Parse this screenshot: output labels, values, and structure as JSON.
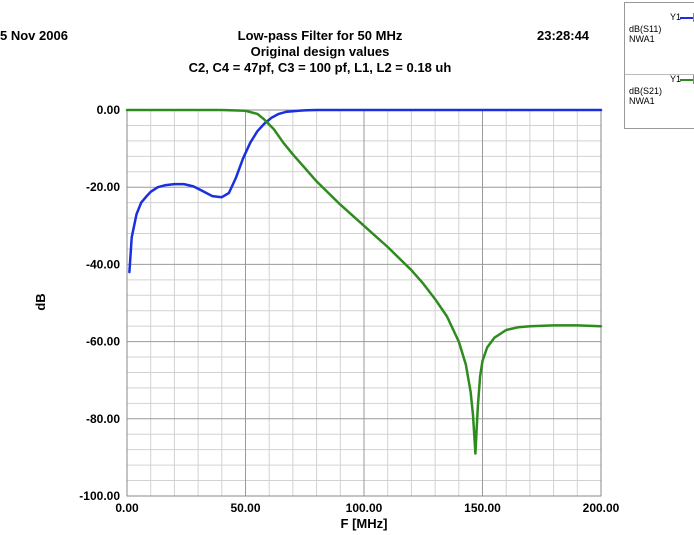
{
  "header": {
    "date": "5 Nov 2006",
    "time": "23:28:44",
    "title_lines": [
      "Low-pass Filter for 50 MHz",
      "Original design values",
      "C2, C4 = 47pf, C3 = 100 pf, L1, L2 = 0.18 uh"
    ]
  },
  "legend": {
    "entries": [
      {
        "axis": "Y1",
        "name": "dB(S11)",
        "source": "NWA1",
        "color": "#1a2fe0"
      },
      {
        "axis": "Y1",
        "name": "dB(S21)",
        "source": "NWA1",
        "color": "#2e8b1e"
      }
    ]
  },
  "chart_data": {
    "type": "line",
    "title": "Low-pass Filter for 50 MHz",
    "xlabel": "F [MHz]",
    "ylabel": "dB",
    "xlim": [
      0,
      200
    ],
    "ylim": [
      -100,
      0
    ],
    "x_ticks": [
      "0.00",
      "50.00",
      "100.00",
      "150.00",
      "200.00"
    ],
    "y_ticks": [
      "0.00",
      "-20.00",
      "-40.00",
      "-60.00",
      "-80.00",
      "-100.00"
    ],
    "grid": true,
    "legend_position": "top-right, outside plot",
    "series": [
      {
        "name": "dB(S11)",
        "color": "#1a2fe0",
        "x": [
          1,
          2,
          4,
          6,
          8,
          10,
          13,
          16,
          20,
          24,
          28,
          32,
          36,
          40,
          43,
          46,
          49,
          52,
          55,
          58,
          61,
          64,
          67,
          70,
          73,
          76,
          80,
          90,
          100,
          150,
          200
        ],
        "y": [
          -42,
          -33,
          -27,
          -24,
          -22.5,
          -21.2,
          -20,
          -19.5,
          -19.2,
          -19.2,
          -19.8,
          -21,
          -22.3,
          -22.6,
          -21.5,
          -17.5,
          -12.5,
          -8.5,
          -5.5,
          -3.5,
          -2,
          -1,
          -0.5,
          -0.3,
          -0.15,
          -0.05,
          0,
          0,
          0,
          0,
          0
        ]
      },
      {
        "name": "dB(S21)",
        "color": "#2e8b1e",
        "x": [
          0,
          20,
          40,
          50,
          55,
          58,
          62,
          66,
          70,
          75,
          80,
          90,
          100,
          110,
          120,
          125,
          130,
          135,
          140,
          143,
          145,
          146,
          147,
          148,
          149,
          150,
          152,
          155,
          160,
          165,
          170,
          180,
          190,
          200
        ],
        "y": [
          0,
          0,
          0,
          -0.2,
          -1,
          -2.5,
          -5,
          -8.5,
          -11.5,
          -15,
          -18.5,
          -24.5,
          -30,
          -35.5,
          -41.5,
          -45,
          -49,
          -53.5,
          -60,
          -66,
          -73,
          -79,
          -89,
          -77,
          -69,
          -65,
          -61.5,
          -59,
          -57,
          -56.3,
          -56,
          -55.8,
          -55.8,
          -56
        ]
      }
    ]
  }
}
